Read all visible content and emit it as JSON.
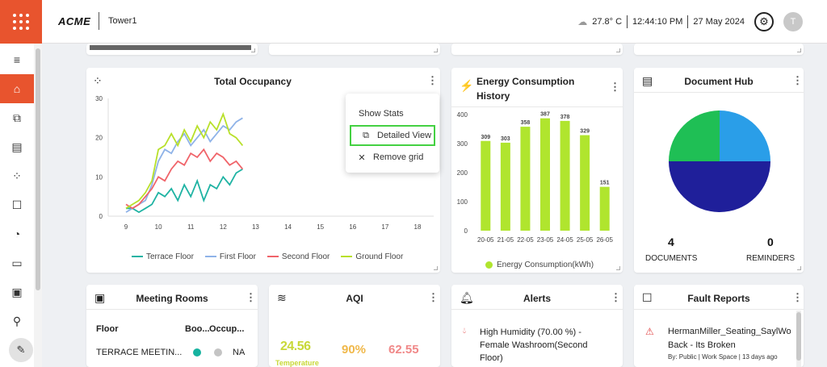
{
  "header": {
    "brand": "ACME",
    "site": "Tower1",
    "temperature": "27.8° C",
    "time": "12:44:10 PM",
    "date": "27 May 2024",
    "avatar_initial": "T"
  },
  "sidebar": {
    "icons": [
      "menu-icon",
      "home-icon",
      "layers-icon",
      "document-icon",
      "occupancy-icon",
      "feedback-icon",
      "broadcast-icon",
      "desk-monitor-icon",
      "meeting-room-icon",
      "user-location-icon",
      "edit-icon"
    ]
  },
  "occupancy": {
    "title": "Total Occupancy",
    "y_ticks": [
      "30",
      "20",
      "10",
      "0"
    ],
    "x_ticks": [
      "9",
      "10",
      "11",
      "12",
      "13",
      "14",
      "15",
      "16",
      "17",
      "18"
    ],
    "legend": [
      "Terrace Floor",
      "First Floor",
      "Second Floor",
      "Ground Floor"
    ],
    "colors": {
      "terrace": "#1fb3a3",
      "first": "#8fb3e8",
      "second": "#f0646a",
      "ground": "#b8e02a"
    }
  },
  "menu": {
    "items": [
      "Show Stats",
      "Detailed View",
      "Remove grid"
    ],
    "highlight_color": "#44d142"
  },
  "energy": {
    "title_line1": "Energy Consumption",
    "title_line2": "History",
    "legend": "Energy Consumption(kWh)",
    "bar_color": "#b0e52e"
  },
  "document_hub": {
    "title": "Document Hub",
    "documents_count": "4",
    "documents_label": "DOCUMENTS",
    "reminders_count": "0",
    "reminders_label": "REMINDERS",
    "slice_colors": [
      "#2a9ee8",
      "#1f1f9a",
      "#1fbf55"
    ]
  },
  "meeting_rooms": {
    "title": "Meeting Rooms",
    "headers": [
      "Floor",
      "Boo...",
      "Occup..."
    ],
    "rows": [
      {
        "floor": "TERRACE MEETIN...",
        "occupancy": "NA"
      }
    ]
  },
  "aqi": {
    "title": "AQI",
    "values": [
      "24.56",
      "90%",
      "62.55"
    ],
    "label": "Temperature"
  },
  "alerts": {
    "title": "Alerts",
    "items": [
      {
        "line1": "High Humidity (70.00 %) -",
        "line2": "Female Washroom(Second",
        "line3": "Floor)"
      }
    ]
  },
  "fault_reports": {
    "title": "Fault Reports",
    "items": [
      {
        "line1": "HermanMiller_Seating_SaylWorkC",
        "line2": "Back - Its Broken",
        "meta": "By: Public | Work Space | 13 days ago"
      }
    ]
  },
  "chart_data": [
    {
      "type": "line",
      "title": "Total Occupancy",
      "xlabel": "",
      "ylabel": "",
      "ylim": [
        0,
        30
      ],
      "xlim": [
        9,
        18
      ],
      "series": [
        {
          "name": "Terrace Floor",
          "x": [
            9.0,
            9.2,
            9.4,
            9.6,
            9.8,
            10.0,
            10.2,
            10.4,
            10.6,
            10.8,
            11.0,
            11.2,
            11.4,
            11.6,
            11.8,
            12.0,
            12.2,
            12.4,
            12.6
          ],
          "y": [
            2,
            2,
            1,
            2,
            3,
            6,
            5,
            7,
            4,
            8,
            5,
            9,
            4,
            8,
            7,
            10,
            8,
            11,
            12
          ]
        },
        {
          "name": "First Floor",
          "x": [
            9.0,
            9.2,
            9.4,
            9.6,
            9.8,
            10.0,
            10.2,
            10.4,
            10.6,
            10.8,
            11.0,
            11.2,
            11.4,
            11.6,
            11.8,
            12.0,
            12.2,
            12.4,
            12.6
          ],
          "y": [
            1,
            2,
            3,
            4,
            8,
            14,
            17,
            16,
            19,
            21,
            18,
            20,
            22,
            19,
            21,
            23,
            22,
            24,
            25
          ]
        },
        {
          "name": "Second Floor",
          "x": [
            9.0,
            9.2,
            9.4,
            9.6,
            9.8,
            10.0,
            10.2,
            10.4,
            10.6,
            10.8,
            11.0,
            11.2,
            11.4,
            11.6,
            11.8,
            12.0,
            12.2,
            12.4,
            12.6
          ],
          "y": [
            3,
            2,
            3,
            5,
            7,
            10,
            9,
            12,
            14,
            13,
            16,
            15,
            17,
            14,
            16,
            15,
            13,
            14,
            12
          ]
        },
        {
          "name": "Ground Floor",
          "x": [
            9.0,
            9.2,
            9.4,
            9.6,
            9.8,
            10.0,
            10.2,
            10.4,
            10.6,
            10.8,
            11.0,
            11.2,
            11.4,
            11.6,
            11.8,
            12.0,
            12.2,
            12.4,
            12.6
          ],
          "y": [
            2,
            3,
            4,
            6,
            9,
            17,
            18,
            21,
            18,
            22,
            19,
            23,
            20,
            24,
            22,
            26,
            21,
            20,
            18
          ]
        }
      ],
      "legend_position": "bottom"
    },
    {
      "type": "bar",
      "title": "Energy Consumption History",
      "categories": [
        "20-05",
        "21-05",
        "22-05",
        "23-05",
        "24-05",
        "25-05",
        "26-05"
      ],
      "series": [
        {
          "name": "Energy Consumption(kWh)",
          "values": [
            309,
            303,
            358,
            387,
            378,
            329,
            151
          ]
        }
      ],
      "y_ticks": [
        0,
        100,
        200,
        300,
        400
      ],
      "ylim": [
        0,
        400
      ],
      "legend_position": "bottom"
    },
    {
      "type": "pie",
      "title": "Document Hub",
      "values": [
        25,
        50,
        25
      ]
    }
  ]
}
